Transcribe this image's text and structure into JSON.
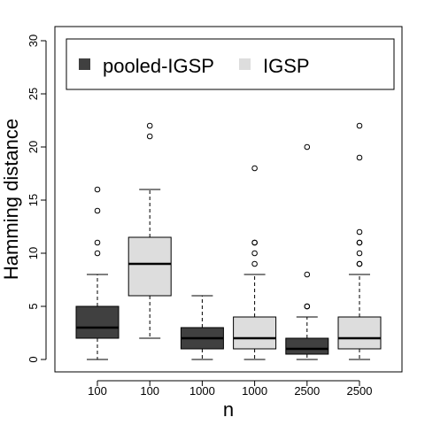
{
  "chart_data": {
    "type": "boxplot",
    "title": "",
    "xlabel": "n",
    "ylabel": "Hamming distance",
    "ylim": [
      0,
      30
    ],
    "yticks": [
      0,
      5,
      10,
      15,
      20,
      25,
      30
    ],
    "legend_position": "top",
    "series": [
      {
        "name": "pooled-IGSP",
        "color": "#404040"
      },
      {
        "name": "IGSP",
        "color": "#dddddd"
      }
    ],
    "boxes": [
      {
        "label": "100",
        "series": "pooled-IGSP",
        "whisker_low": 0,
        "q1": 2,
        "median": 3,
        "q3": 5,
        "whisker_high": 8,
        "outliers": [
          10,
          11,
          14,
          16
        ]
      },
      {
        "label": "100",
        "series": "IGSP",
        "whisker_low": 2,
        "q1": 6,
        "median": 9,
        "q3": 11.5,
        "whisker_high": 16,
        "outliers": [
          21,
          22
        ]
      },
      {
        "label": "1000",
        "series": "pooled-IGSP",
        "whisker_low": 0,
        "q1": 1,
        "median": 2,
        "q3": 3,
        "whisker_high": 6,
        "outliers": []
      },
      {
        "label": "1000",
        "series": "IGSP",
        "whisker_low": 0,
        "q1": 1,
        "median": 2,
        "q3": 4,
        "whisker_high": 8,
        "outliers": [
          9,
          10,
          11,
          11,
          18
        ]
      },
      {
        "label": "2500",
        "series": "pooled-IGSP",
        "whisker_low": 0,
        "q1": 0.5,
        "median": 1,
        "q3": 2,
        "whisker_high": 4,
        "outliers": [
          5,
          5,
          8,
          20
        ]
      },
      {
        "label": "2500",
        "series": "IGSP",
        "whisker_low": 0,
        "q1": 1,
        "median": 2,
        "q3": 4,
        "whisker_high": 8,
        "outliers": [
          9,
          9,
          10,
          11,
          11,
          12,
          19,
          22
        ]
      }
    ]
  }
}
